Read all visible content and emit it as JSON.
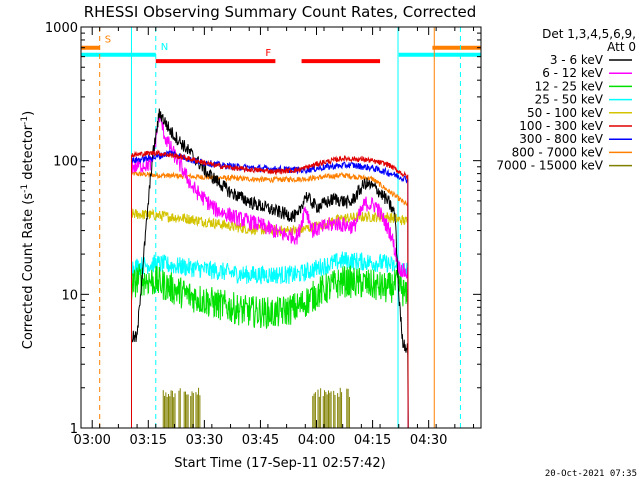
{
  "chart_data": {
    "type": "line",
    "title": "RHESSI Observing Summary Count Rates, Corrected",
    "xlabel": "Start Time (17-Sep-11 02:57:42)",
    "ylabel": "Corrected Count Rate (s",
    "ylabel_sup": "-1",
    "ylabel_tail": " detector",
    "ylabel_tail_sup": "-1",
    "ylabel_close": ")",
    "yscale": "log",
    "ylim": [
      1,
      1000
    ],
    "xlim_min": [
      0,
      107
    ],
    "y_ticks": [
      {
        "value": 1,
        "label": "1"
      },
      {
        "value": 10,
        "label": "10"
      },
      {
        "value": 100,
        "label": "100"
      },
      {
        "value": 1000,
        "label": "1000"
      }
    ],
    "x_ticks": [
      {
        "value": 3,
        "label": "03:00"
      },
      {
        "value": 18,
        "label": "03:15"
      },
      {
        "value": 33,
        "label": "03:30"
      },
      {
        "value": 48,
        "label": "03:45"
      },
      {
        "value": 63,
        "label": "04:00"
      },
      {
        "value": 78,
        "label": "04:15"
      },
      {
        "value": 93,
        "label": "04:30"
      }
    ],
    "legend_header": [
      "Det 1,3,4,5,6,9,",
      "Att 0"
    ],
    "legend": [
      {
        "label": "3 - 6 keV",
        "color": "#000000"
      },
      {
        "label": "6 - 12 keV",
        "color": "#ff00ff"
      },
      {
        "label": "12 - 25 keV",
        "color": "#00e000"
      },
      {
        "label": "25 - 50 keV",
        "color": "#00ffff"
      },
      {
        "label": "50 - 100 keV",
        "color": "#d4c400"
      },
      {
        "label": "100 - 300 keV",
        "color": "#e00000"
      },
      {
        "label": "300 - 800 keV",
        "color": "#0000ff"
      },
      {
        "label": "800 - 7000 keV",
        "color": "#ff8000"
      },
      {
        "label": "7000 - 15000 keV",
        "color": "#808000"
      }
    ],
    "flags": [
      {
        "label": "S",
        "color": "#ff8000",
        "value": 700,
        "segments": [
          [
            0,
            5
          ],
          [
            94,
            107
          ]
        ]
      },
      {
        "label": "N",
        "color": "#00ffff",
        "value": 620,
        "segments": [
          [
            0,
            20
          ],
          [
            85,
            107
          ]
        ]
      },
      {
        "label": "F",
        "color": "#ff0000",
        "value": 555,
        "segments": [
          [
            20,
            52
          ],
          [
            59,
            80
          ]
        ]
      }
    ],
    "vlines": [
      {
        "x": 5,
        "color": "#ff8000",
        "style": "dashed"
      },
      {
        "x": 13.5,
        "color": "#00ffff",
        "style": "solid"
      },
      {
        "x": 20,
        "color": "#00ffff",
        "style": "dashed"
      },
      {
        "x": 84.8,
        "color": "#00ffff",
        "style": "solid"
      },
      {
        "x": 94.5,
        "color": "#ff8000",
        "style": "solid"
      },
      {
        "x": 101.5,
        "color": "#00ffff",
        "style": "dashed"
      }
    ],
    "series": [
      {
        "name": "800 - 7000 keV",
        "color": "#ff8000",
        "noise": 0.02,
        "points": [
          [
            13.5,
            80
          ],
          [
            20,
            78
          ],
          [
            30,
            76
          ],
          [
            40,
            74
          ],
          [
            50,
            72
          ],
          [
            60,
            73
          ],
          [
            70,
            78
          ],
          [
            78,
            73
          ],
          [
            85,
            52
          ],
          [
            87.5,
            46
          ]
        ]
      },
      {
        "name": "50 - 100 keV",
        "color": "#d4c400",
        "noise": 0.04,
        "points": [
          [
            13.5,
            40
          ],
          [
            20,
            39
          ],
          [
            28,
            37
          ],
          [
            36,
            34
          ],
          [
            44,
            31
          ],
          [
            52,
            30
          ],
          [
            58,
            30
          ],
          [
            64,
            33
          ],
          [
            70,
            37
          ],
          [
            76,
            38
          ],
          [
            82,
            38
          ],
          [
            87.5,
            35
          ]
        ]
      },
      {
        "name": "25 - 50 keV",
        "color": "#00ffff",
        "noise": 0.07,
        "points": [
          [
            13.5,
            16
          ],
          [
            20,
            17
          ],
          [
            28,
            16
          ],
          [
            36,
            15
          ],
          [
            44,
            14
          ],
          [
            52,
            14
          ],
          [
            58,
            14
          ],
          [
            64,
            16
          ],
          [
            70,
            18
          ],
          [
            76,
            17.5
          ],
          [
            82,
            17
          ],
          [
            85,
            15.5
          ],
          [
            87.5,
            15
          ]
        ]
      },
      {
        "name": "12 - 25 keV",
        "color": "#00e000",
        "noise": 0.12,
        "points": [
          [
            13.5,
            11
          ],
          [
            15,
            13
          ],
          [
            20,
            12.5
          ],
          [
            28,
            10
          ],
          [
            36,
            8.5
          ],
          [
            44,
            7.5
          ],
          [
            52,
            7.2
          ],
          [
            58,
            8
          ],
          [
            64,
            10.5
          ],
          [
            70,
            12.5
          ],
          [
            76,
            12
          ],
          [
            82,
            11
          ],
          [
            85,
            12
          ],
          [
            87.5,
            9
          ]
        ]
      },
      {
        "name": "6 - 12 keV",
        "color": "#ff00ff",
        "noise": 0.06,
        "points": [
          [
            13.5,
            90
          ],
          [
            19,
            95
          ],
          [
            21,
            220
          ],
          [
            22.5,
            150
          ],
          [
            25,
            110
          ],
          [
            30,
            62
          ],
          [
            36,
            43
          ],
          [
            42,
            37
          ],
          [
            48,
            33
          ],
          [
            54,
            28
          ],
          [
            58,
            27
          ],
          [
            60,
            45
          ],
          [
            62,
            30
          ],
          [
            68,
            34
          ],
          [
            73,
            32
          ],
          [
            76,
            48
          ],
          [
            79,
            46
          ],
          [
            83,
            28
          ],
          [
            85,
            16
          ],
          [
            87.5,
            14
          ]
        ]
      },
      {
        "name": "3 - 6 keV",
        "color": "#000000",
        "noise": 0.05,
        "points": [
          [
            13.5,
            4.8
          ],
          [
            15,
            4.7
          ],
          [
            16,
            11
          ],
          [
            19,
            100
          ],
          [
            21,
            230
          ],
          [
            24,
            165
          ],
          [
            28,
            125
          ],
          [
            34,
            80
          ],
          [
            40,
            58
          ],
          [
            46,
            48
          ],
          [
            52,
            42
          ],
          [
            56,
            39
          ],
          [
            58,
            38
          ],
          [
            60,
            55
          ],
          [
            63,
            45
          ],
          [
            68,
            52
          ],
          [
            72,
            48
          ],
          [
            76,
            68
          ],
          [
            79,
            62
          ],
          [
            82,
            50
          ],
          [
            84,
            40
          ],
          [
            85,
            10
          ],
          [
            86,
            4.5
          ],
          [
            87.5,
            3.8
          ]
        ]
      },
      {
        "name": "300 - 800 keV",
        "color": "#0000ff",
        "noise": 0.025,
        "points": [
          [
            13.5,
            100
          ],
          [
            20,
            106
          ],
          [
            24,
            115
          ],
          [
            30,
            100
          ],
          [
            38,
            92
          ],
          [
            46,
            88
          ],
          [
            54,
            86
          ],
          [
            60,
            85
          ],
          [
            66,
            90
          ],
          [
            72,
            93
          ],
          [
            78,
            88
          ],
          [
            83,
            80
          ],
          [
            87.5,
            72
          ]
        ]
      },
      {
        "name": "100 - 300 keV",
        "color": "#e00000",
        "noise": 0.02,
        "points": [
          [
            13.5,
            110
          ],
          [
            20,
            115
          ],
          [
            28,
            105
          ],
          [
            36,
            92
          ],
          [
            44,
            86
          ],
          [
            52,
            83
          ],
          [
            58,
            85
          ],
          [
            64,
            96
          ],
          [
            70,
            104
          ],
          [
            76,
            102
          ],
          [
            82,
            94
          ],
          [
            87.5,
            75
          ]
        ]
      },
      {
        "name": "7000 - 15000 keV",
        "color": "#808000",
        "style": "bursts",
        "bursts": [
          [
            22,
            32,
            2.0
          ],
          [
            62,
            72,
            2.0
          ]
        ]
      }
    ],
    "footer_date": "20-Oct-2021 07:35"
  }
}
